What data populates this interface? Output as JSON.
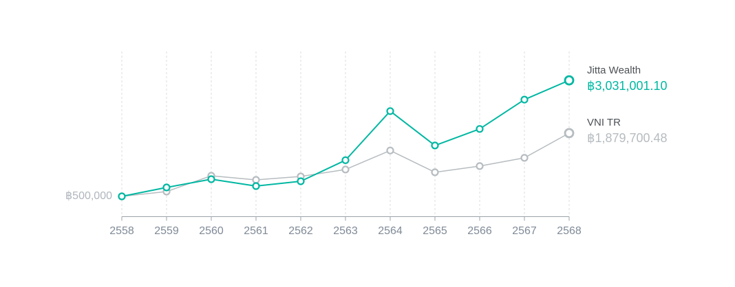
{
  "legend": {
    "jitta": {
      "name": "Jitta Wealth",
      "value": "฿3,031,001.10"
    },
    "vni": {
      "name": "VNI TR",
      "value": "฿1,879,700.48"
    }
  },
  "axes": {
    "y_start_label": "฿500,000"
  },
  "chart_data": {
    "type": "line",
    "categories": [
      "2558",
      "2559",
      "2560",
      "2561",
      "2562",
      "2563",
      "2564",
      "2565",
      "2566",
      "2567",
      "2568"
    ],
    "series": [
      {
        "name": "Jitta Wealth",
        "color": "#00b7a2",
        "values": [
          500000,
          695000,
          875000,
          725000,
          830000,
          1290000,
          2360000,
          1610000,
          1970000,
          2610000,
          3031001.1
        ],
        "end_label": "฿3,031,001.10"
      },
      {
        "name": "VNI TR",
        "color": "#b6bcc0",
        "values": [
          500000,
          605000,
          950000,
          860000,
          935000,
          1085000,
          1500000,
          1025000,
          1160000,
          1340000,
          1879700.48
        ],
        "end_label": "฿1,879,700.48"
      }
    ],
    "title": "",
    "xlabel": "",
    "ylabel": "",
    "y_anchor": {
      "label": "฿500,000",
      "value": 500000
    },
    "ylim": [
      65000,
      3660000
    ],
    "grid": "vertical-dashed",
    "legend_position": "right",
    "marker": "open-circle",
    "colors": {
      "gridline": "#dcdee0",
      "axis": "#9ba2a8",
      "x_label": "#7f8a97",
      "y_start_label": "#b0b6bd",
      "legend_name": "#4c5155"
    }
  }
}
